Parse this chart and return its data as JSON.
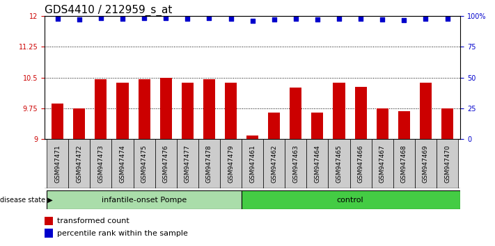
{
  "title": "GDS4410 / 212959_s_at",
  "samples": [
    "GSM947471",
    "GSM947472",
    "GSM947473",
    "GSM947474",
    "GSM947475",
    "GSM947476",
    "GSM947477",
    "GSM947478",
    "GSM947479",
    "GSM947461",
    "GSM947462",
    "GSM947463",
    "GSM947464",
    "GSM947465",
    "GSM947466",
    "GSM947467",
    "GSM947468",
    "GSM947469",
    "GSM947470"
  ],
  "bar_values": [
    9.87,
    9.75,
    10.45,
    10.37,
    10.45,
    10.5,
    10.37,
    10.45,
    10.37,
    9.08,
    9.65,
    10.25,
    9.65,
    10.37,
    10.27,
    9.75,
    9.68,
    10.38,
    9.75
  ],
  "percentile_values": [
    11.93,
    11.92,
    11.95,
    11.93,
    11.95,
    11.95,
    11.93,
    11.95,
    11.93,
    11.88,
    11.91,
    11.93,
    11.91,
    11.93,
    11.93,
    11.91,
    11.9,
    11.93,
    11.93
  ],
  "bar_color": "#cc0000",
  "dot_color": "#0000cc",
  "group1_label": "infantile-onset Pompe",
  "group1_color": "#aaddaa",
  "group2_label": "control",
  "group2_color": "#44cc44",
  "group1_count": 9,
  "group2_count": 10,
  "disease_state_label": "disease state",
  "ymin": 9.0,
  "ymax": 12.0,
  "ytick_labels": [
    "9",
    "9.75",
    "10.5",
    "11.25",
    "12"
  ],
  "ytick_positions": [
    9.0,
    9.75,
    10.5,
    11.25,
    12.0
  ],
  "grid_values": [
    9.75,
    10.5,
    11.25
  ],
  "right_ytick_labels": [
    "0",
    "25",
    "50",
    "75",
    "100%"
  ],
  "right_ytick_positions": [
    9.0,
    9.75,
    10.5,
    11.25,
    12.0
  ],
  "legend_bar_label": "transformed count",
  "legend_dot_label": "percentile rank within the sample",
  "title_fontsize": 11,
  "tick_fontsize": 7,
  "sample_fontsize": 6.5,
  "label_fontsize": 8,
  "xtick_bg_color": "#cccccc"
}
